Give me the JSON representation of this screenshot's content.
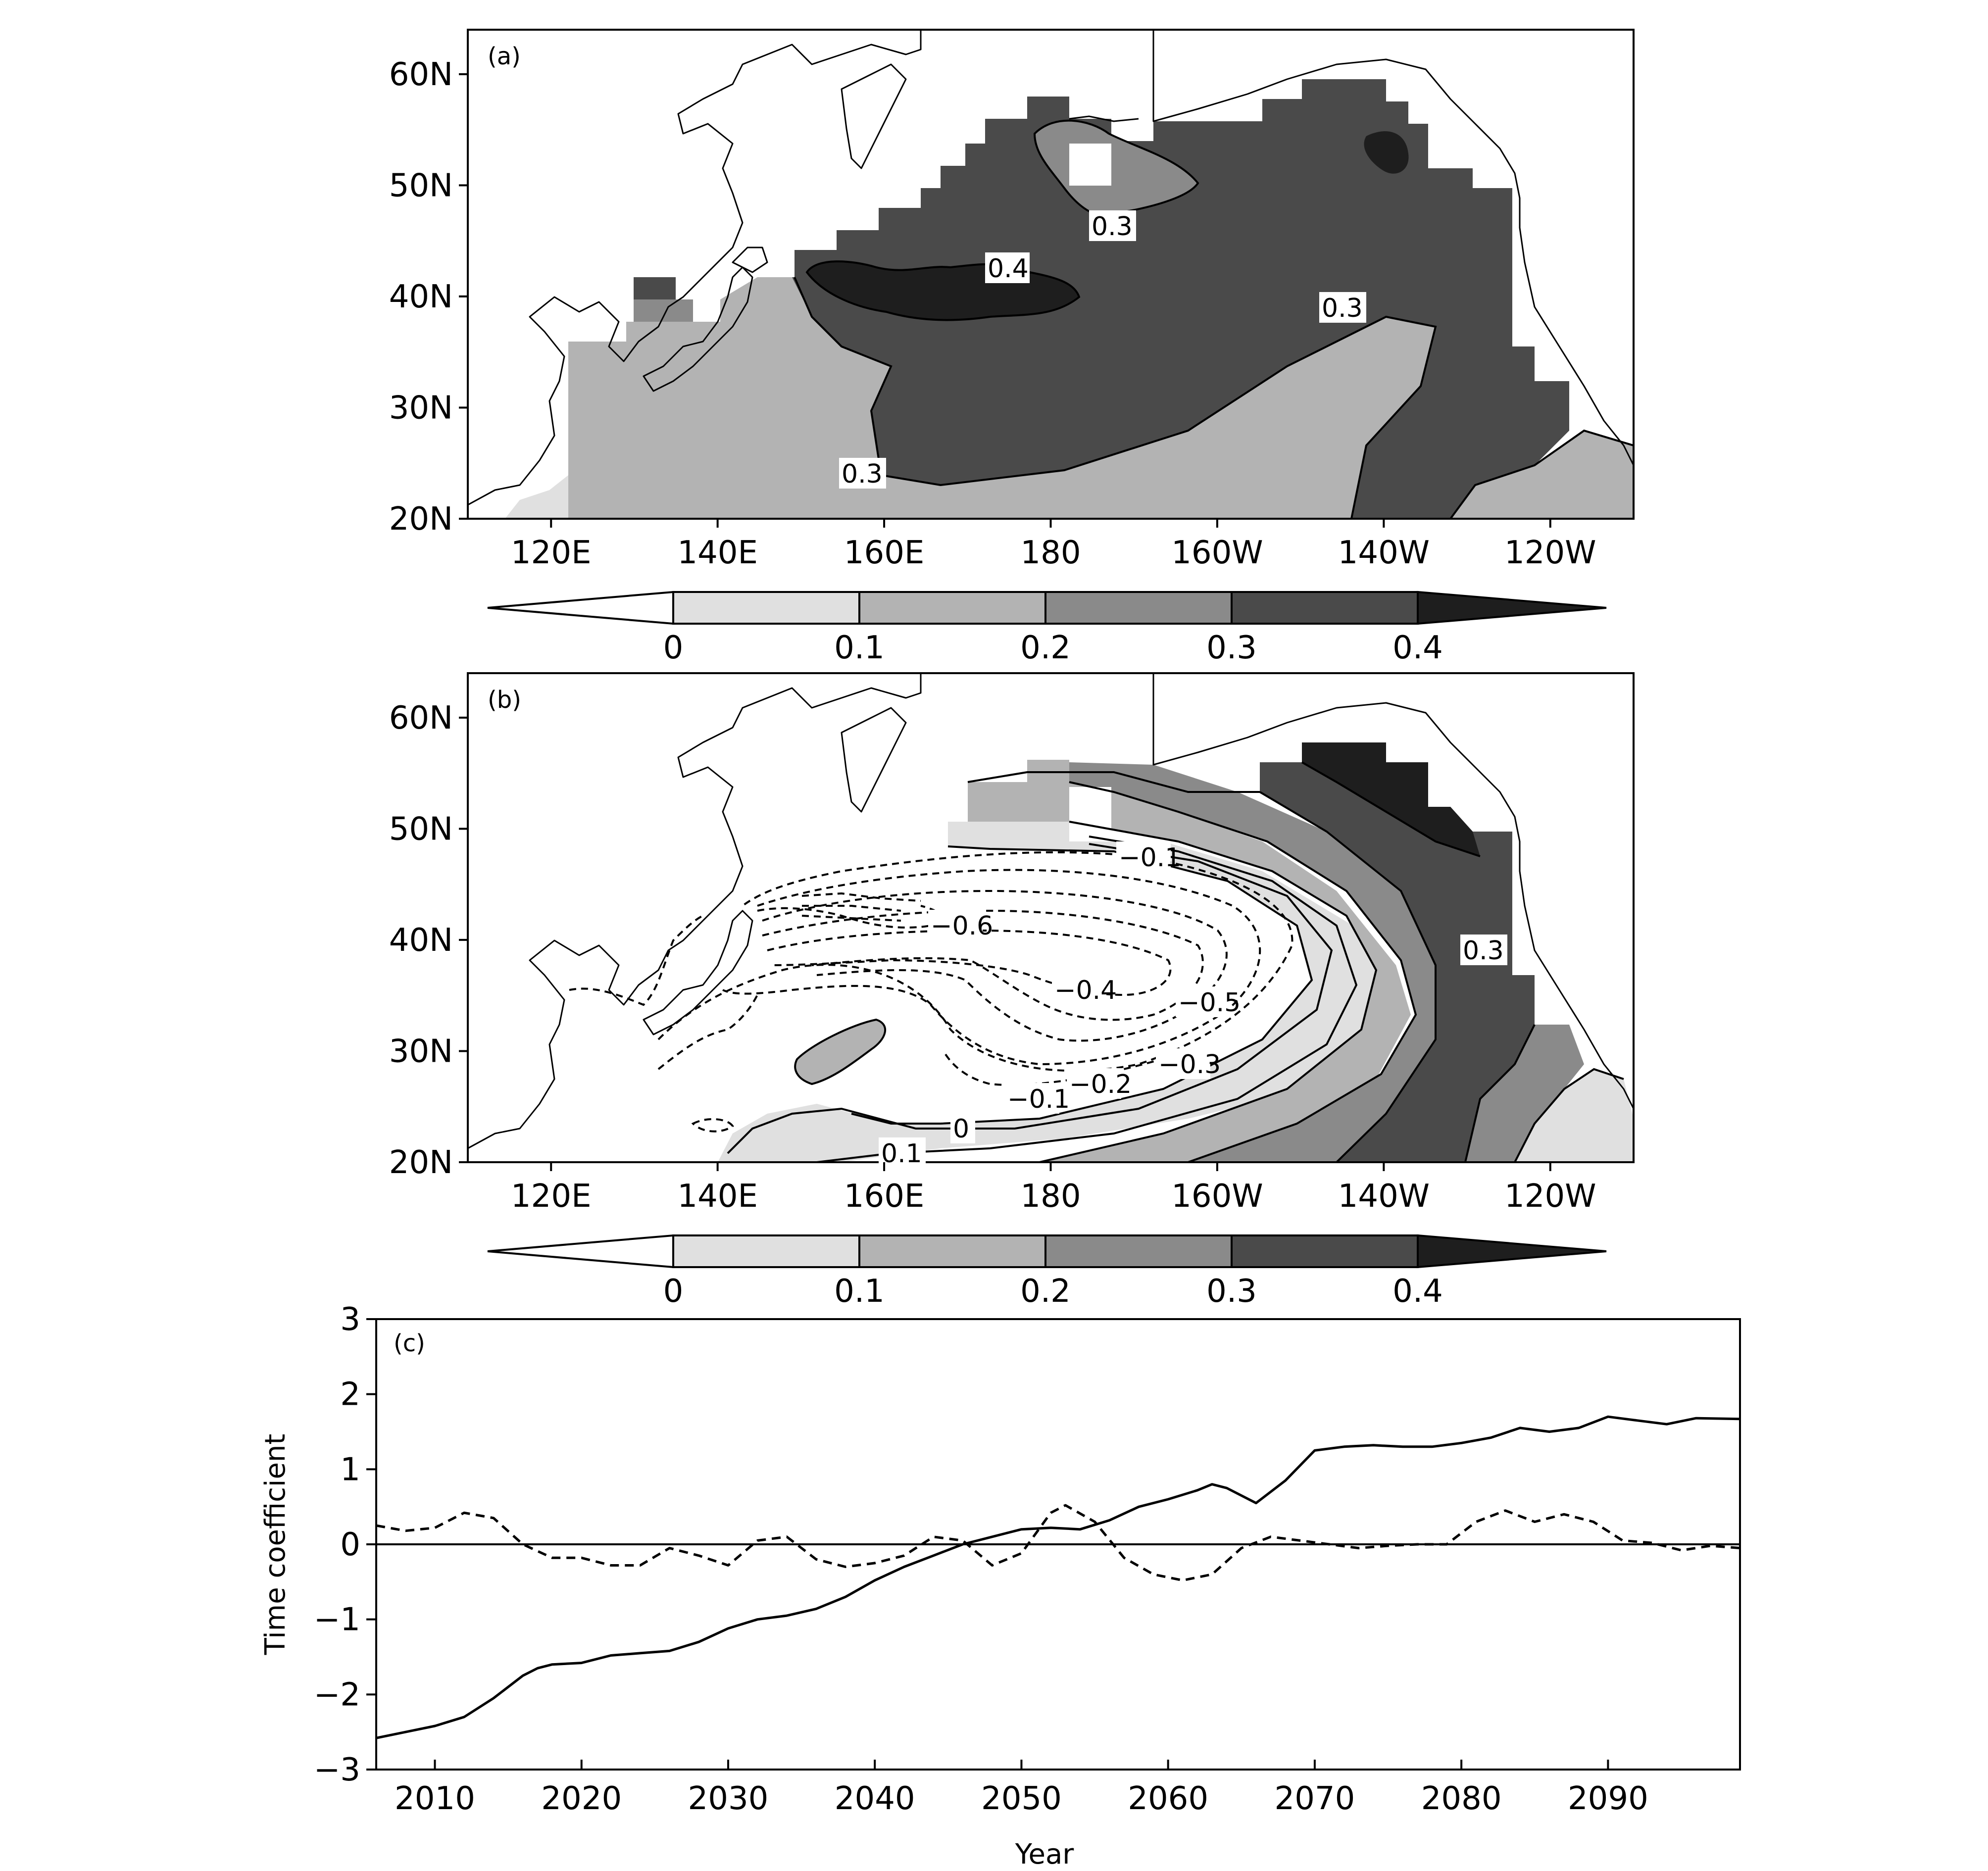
{
  "chart_data": [
    {
      "type": "map",
      "panel_label": "(a)",
      "x_ticks": [
        "120E",
        "140E",
        "160E",
        "180",
        "160W",
        "140W",
        "120W"
      ],
      "y_ticks": [
        "60N",
        "50N",
        "40N",
        "30N",
        "20N"
      ],
      "lon_range": [
        110,
        250
      ],
      "lat_range": [
        20,
        64
      ],
      "contour_labels": [
        "0.3",
        "0.4",
        "0.3",
        "0.3"
      ],
      "colorbar": {
        "ticks": [
          "0",
          "0.1",
          "0.2",
          "0.3",
          "0.4"
        ],
        "colors": [
          "#ffffff",
          "#e0e0e0",
          "#b3b3b3",
          "#8a8a8a",
          "#4a4a4a",
          "#1e1e1e"
        ]
      }
    },
    {
      "type": "map",
      "panel_label": "(b)",
      "x_ticks": [
        "120E",
        "140E",
        "160E",
        "180",
        "160W",
        "140W",
        "120W"
      ],
      "y_ticks": [
        "60N",
        "50N",
        "40N",
        "30N",
        "20N"
      ],
      "lon_range": [
        110,
        250
      ],
      "lat_range": [
        20,
        64
      ],
      "contour_labels": [
        "−0.1",
        "−0.6",
        "0.3",
        "−0.4",
        "−0.5",
        "−0.3",
        "−0.2",
        "−0.1",
        "0",
        "0.1"
      ],
      "colorbar": {
        "ticks": [
          "0",
          "0.1",
          "0.2",
          "0.3",
          "0.4"
        ],
        "colors": [
          "#ffffff",
          "#e0e0e0",
          "#b3b3b3",
          "#8a8a8a",
          "#4a4a4a",
          "#1e1e1e"
        ]
      }
    },
    {
      "type": "line",
      "panel_label": "(c)",
      "xlabel": "Year",
      "ylabel": "Time coefficient",
      "xlim": [
        2006,
        2099
      ],
      "ylim": [
        -3,
        3
      ],
      "x_ticks": [
        "2010",
        "2020",
        "2030",
        "2040",
        "2050",
        "2060",
        "2070",
        "2080",
        "2090"
      ],
      "y_ticks": [
        "3",
        "2",
        "1",
        "0",
        "−1",
        "−2",
        "−3"
      ],
      "series": [
        {
          "style": "solid",
          "x": [
            2006,
            2008,
            2010,
            2012,
            2014,
            2016,
            2017,
            2018,
            2020,
            2022,
            2024,
            2026,
            2028,
            2030,
            2032,
            2034,
            2036,
            2038,
            2040,
            2042,
            2044,
            2046,
            2048,
            2050,
            2052,
            2054,
            2056,
            2058,
            2060,
            2062,
            2063,
            2064,
            2066,
            2068,
            2070,
            2072,
            2074,
            2076,
            2078,
            2080,
            2082,
            2084,
            2086,
            2088,
            2090,
            2092,
            2094,
            2096,
            2099
          ],
          "y": [
            -2.58,
            -2.5,
            -2.42,
            -2.3,
            -2.05,
            -1.75,
            -1.65,
            -1.6,
            -1.58,
            -1.48,
            -1.45,
            -1.42,
            -1.3,
            -1.12,
            -1.0,
            -0.95,
            -0.86,
            -0.7,
            -0.48,
            -0.3,
            -0.15,
            0.0,
            0.1,
            0.2,
            0.22,
            0.2,
            0.32,
            0.5,
            0.6,
            0.72,
            0.8,
            0.75,
            0.55,
            0.85,
            1.25,
            1.3,
            1.32,
            1.3,
            1.3,
            1.35,
            1.42,
            1.55,
            1.5,
            1.55,
            1.7,
            1.65,
            1.6,
            1.68,
            1.67
          ]
        },
        {
          "style": "dashed",
          "x": [
            2006,
            2008,
            2010,
            2012,
            2014,
            2016,
            2018,
            2020,
            2022,
            2024,
            2026,
            2028,
            2030,
            2032,
            2034,
            2036,
            2038,
            2040,
            2042,
            2044,
            2046,
            2048,
            2050,
            2052,
            2053,
            2055,
            2057,
            2059,
            2061,
            2063,
            2065,
            2067,
            2069,
            2071,
            2073,
            2075,
            2077,
            2079,
            2081,
            2083,
            2085,
            2087,
            2089,
            2091,
            2093,
            2095,
            2097,
            2099
          ],
          "y": [
            0.25,
            0.18,
            0.22,
            0.42,
            0.35,
            0.0,
            -0.18,
            -0.18,
            -0.28,
            -0.28,
            -0.05,
            -0.15,
            -0.28,
            0.05,
            0.1,
            -0.2,
            -0.3,
            -0.25,
            -0.15,
            0.1,
            0.05,
            -0.28,
            -0.12,
            0.42,
            0.52,
            0.3,
            -0.18,
            -0.4,
            -0.48,
            -0.4,
            -0.05,
            0.1,
            0.05,
            0.0,
            -0.05,
            -0.02,
            0.0,
            0.0,
            0.3,
            0.45,
            0.3,
            0.4,
            0.3,
            0.05,
            0.02,
            -0.08,
            -0.02,
            -0.05
          ]
        }
      ]
    }
  ]
}
